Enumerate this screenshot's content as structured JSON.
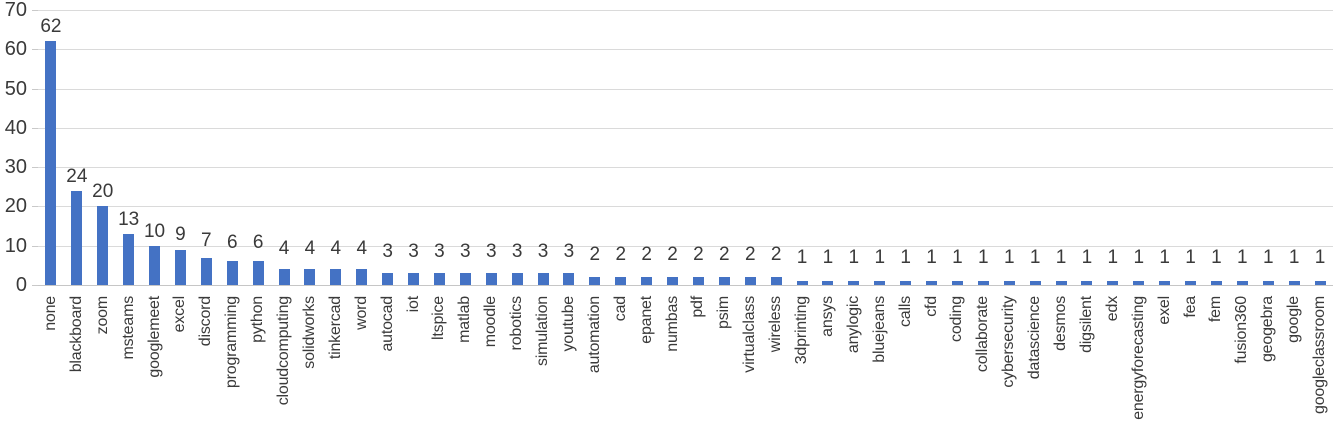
{
  "chart_data": {
    "type": "bar",
    "title": "",
    "xlabel": "",
    "ylabel": "",
    "legend": "none",
    "grid": true,
    "data_labels": true,
    "ylim": [
      0,
      70
    ],
    "yticks": [
      0,
      10,
      20,
      30,
      40,
      50,
      60,
      70
    ],
    "categories": [
      "none",
      "blackboard",
      "zoom",
      "msteams",
      "googlemeet",
      "excel",
      "discord",
      "programming",
      "python",
      "cloudcomputing",
      "solidworks",
      "tinkercad",
      "word",
      "autocad",
      "iot",
      "ltspice",
      "matlab",
      "moodle",
      "robotics",
      "simulation",
      "youtube",
      "automation",
      "cad",
      "epanet",
      "numbas",
      "pdf",
      "psim",
      "virtualclass",
      "wireless",
      "3dprinting",
      "ansys",
      "anylogic",
      "bluejeans",
      "calls",
      "cfd",
      "coding",
      "collaborate",
      "cybersecurity",
      "datascience",
      "desmos",
      "digsilent",
      "edx",
      "energyforecasting",
      "exel",
      "fea",
      "fem",
      "fusion360",
      "geogebra",
      "google",
      "googleclassroom"
    ],
    "values": [
      62,
      24,
      20,
      13,
      10,
      9,
      7,
      6,
      6,
      4,
      4,
      4,
      4,
      3,
      3,
      3,
      3,
      3,
      3,
      3,
      3,
      2,
      2,
      2,
      2,
      2,
      2,
      2,
      2,
      1,
      1,
      1,
      1,
      1,
      1,
      1,
      1,
      1,
      1,
      1,
      1,
      1,
      1,
      1,
      1,
      1,
      1,
      1,
      1,
      1
    ],
    "bar_color": "#4472C4"
  },
  "colors": {
    "bar": "#4472C4",
    "gridline": "#DADADA",
    "axis_line": "#C6C6C6",
    "tick": "#C9C9C9",
    "text": "#3A3A3A",
    "background": "#FFFFFF"
  }
}
